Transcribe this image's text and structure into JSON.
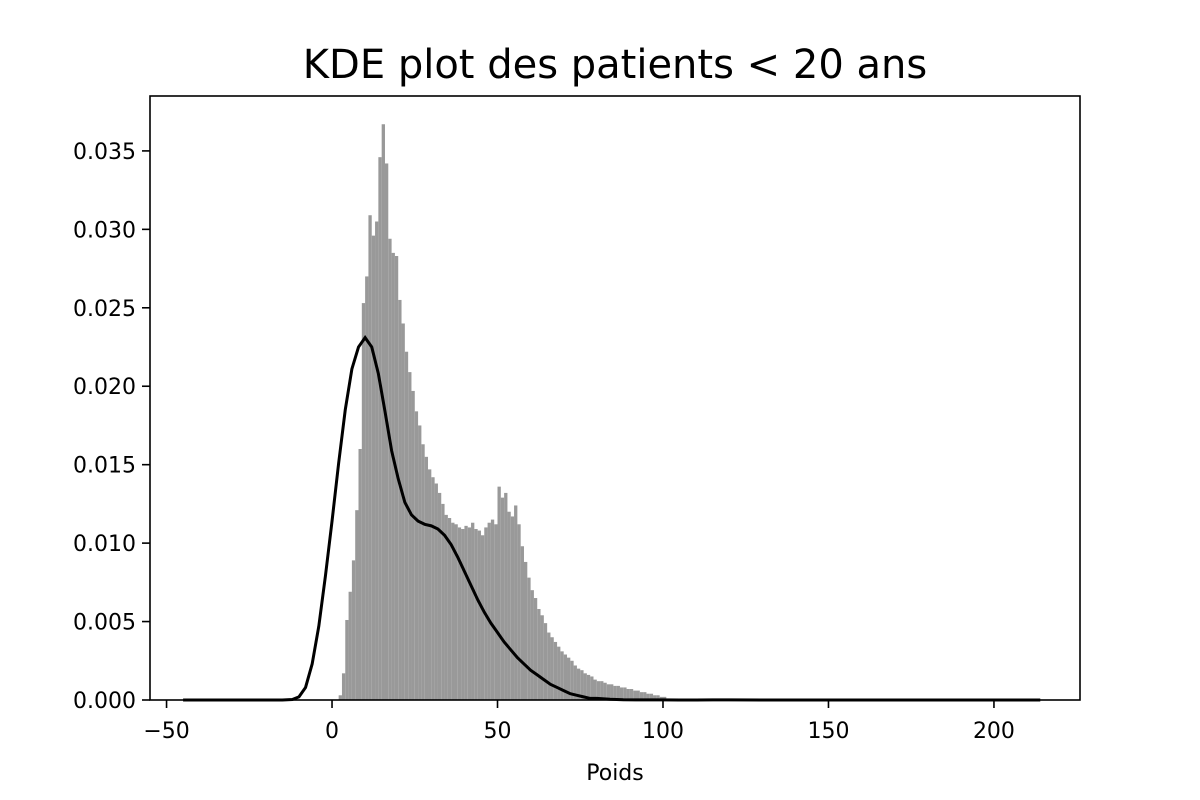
{
  "chart_data": {
    "type": "bar",
    "title": "KDE plot des patients < 20 ans",
    "xlabel": "Poids",
    "ylabel": "",
    "xlim": [
      -55,
      226
    ],
    "ylim": [
      0,
      0.0385
    ],
    "xticks": [
      {
        "value": -50,
        "label": "−50"
      },
      {
        "value": 0,
        "label": "0"
      },
      {
        "value": 50,
        "label": "50"
      },
      {
        "value": 100,
        "label": "100"
      },
      {
        "value": 150,
        "label": "150"
      },
      {
        "value": 200,
        "label": "200"
      }
    ],
    "yticks": [
      {
        "value": 0.0,
        "label": "0.000"
      },
      {
        "value": 0.005,
        "label": "0.005"
      },
      {
        "value": 0.01,
        "label": "0.010"
      },
      {
        "value": 0.015,
        "label": "0.015"
      },
      {
        "value": 0.02,
        "label": "0.020"
      },
      {
        "value": 0.025,
        "label": "0.025"
      },
      {
        "value": 0.03,
        "label": "0.030"
      },
      {
        "value": 0.035,
        "label": "0.035"
      }
    ],
    "grid": false,
    "colors": {
      "histogram": "#999999",
      "kde": "#000000"
    },
    "histogram": {
      "bin_width": 1,
      "bins": [
        [
          2,
          0.0003
        ],
        [
          3,
          0.0017
        ],
        [
          4,
          0.0051
        ],
        [
          5,
          0.0069
        ],
        [
          6,
          0.0089
        ],
        [
          7,
          0.0121
        ],
        [
          8,
          0.016
        ],
        [
          9,
          0.0253
        ],
        [
          10,
          0.027
        ],
        [
          11,
          0.0309
        ],
        [
          12,
          0.0296
        ],
        [
          13,
          0.0305
        ],
        [
          14,
          0.0346
        ],
        [
          15,
          0.0367
        ],
        [
          16,
          0.0342
        ],
        [
          17,
          0.0294
        ],
        [
          18,
          0.0285
        ],
        [
          19,
          0.0283
        ],
        [
          20,
          0.0255
        ],
        [
          21,
          0.024
        ],
        [
          22,
          0.0222
        ],
        [
          23,
          0.0209
        ],
        [
          24,
          0.0197
        ],
        [
          25,
          0.0184
        ],
        [
          26,
          0.0175
        ],
        [
          27,
          0.0163
        ],
        [
          28,
          0.0155
        ],
        [
          29,
          0.0147
        ],
        [
          30,
          0.0142
        ],
        [
          31,
          0.0138
        ],
        [
          32,
          0.0132
        ],
        [
          33,
          0.0125
        ],
        [
          34,
          0.0118
        ],
        [
          35,
          0.0116
        ],
        [
          36,
          0.0113
        ],
        [
          37,
          0.0112
        ],
        [
          38,
          0.011
        ],
        [
          39,
          0.0109
        ],
        [
          40,
          0.0111
        ],
        [
          41,
          0.011
        ],
        [
          42,
          0.0113
        ],
        [
          43,
          0.0109
        ],
        [
          44,
          0.0108
        ],
        [
          45,
          0.0105
        ],
        [
          46,
          0.011
        ],
        [
          47,
          0.0113
        ],
        [
          48,
          0.0115
        ],
        [
          49,
          0.0112
        ],
        [
          50,
          0.0136
        ],
        [
          51,
          0.0129
        ],
        [
          52,
          0.0132
        ],
        [
          53,
          0.012
        ],
        [
          54,
          0.0117
        ],
        [
          55,
          0.0124
        ],
        [
          56,
          0.0112
        ],
        [
          57,
          0.0098
        ],
        [
          58,
          0.0088
        ],
        [
          59,
          0.0078
        ],
        [
          60,
          0.007
        ],
        [
          61,
          0.0065
        ],
        [
          62,
          0.0058
        ],
        [
          63,
          0.0054
        ],
        [
          64,
          0.0049
        ],
        [
          65,
          0.0043
        ],
        [
          66,
          0.004
        ],
        [
          67,
          0.0037
        ],
        [
          68,
          0.0034
        ],
        [
          69,
          0.0031
        ],
        [
          70,
          0.0029
        ],
        [
          71,
          0.0027
        ],
        [
          72,
          0.0025
        ],
        [
          73,
          0.0022
        ],
        [
          74,
          0.002
        ],
        [
          75,
          0.0019
        ],
        [
          76,
          0.0017
        ],
        [
          77,
          0.0016
        ],
        [
          78,
          0.0015
        ],
        [
          79,
          0.0013
        ],
        [
          80,
          0.0012
        ],
        [
          81,
          0.0012
        ],
        [
          82,
          0.0011
        ],
        [
          83,
          0.001
        ],
        [
          84,
          0.001
        ],
        [
          85,
          0.0009
        ],
        [
          86,
          0.0009
        ],
        [
          87,
          0.0008
        ],
        [
          88,
          0.0008
        ],
        [
          89,
          0.0007
        ],
        [
          90,
          0.0007
        ],
        [
          91,
          0.0006
        ],
        [
          92,
          0.0006
        ],
        [
          93,
          0.0005
        ],
        [
          94,
          0.0005
        ],
        [
          95,
          0.0004
        ],
        [
          96,
          0.0004
        ],
        [
          97,
          0.0003
        ],
        [
          98,
          0.0003
        ],
        [
          99,
          0.0002
        ],
        [
          100,
          0.0002
        ]
      ]
    },
    "kde": {
      "x": [
        -45,
        -15,
        -12,
        -10,
        -8,
        -6,
        -4,
        -2,
        0,
        2,
        4,
        6,
        8,
        10,
        12,
        14,
        16,
        18,
        20,
        22,
        24,
        26,
        28,
        30,
        32,
        34,
        36,
        38,
        40,
        42,
        44,
        46,
        48,
        50,
        52,
        54,
        56,
        58,
        60,
        62,
        64,
        66,
        68,
        70,
        72,
        74,
        76,
        78,
        80,
        84,
        88,
        92,
        96,
        100,
        105,
        110,
        115,
        120,
        130,
        140,
        150,
        160,
        180,
        200,
        214
      ],
      "y": [
        0.0,
        0.0,
        3e-05,
        0.0002,
        0.0008,
        0.0023,
        0.0047,
        0.0079,
        0.0114,
        0.0151,
        0.0185,
        0.0211,
        0.0225,
        0.0231,
        0.0225,
        0.0208,
        0.0184,
        0.0159,
        0.0141,
        0.0126,
        0.0118,
        0.0114,
        0.0112,
        0.0111,
        0.0109,
        0.0105,
        0.0099,
        0.0091,
        0.0082,
        0.0073,
        0.0064,
        0.0056,
        0.0049,
        0.0043,
        0.0037,
        0.0032,
        0.0027,
        0.0023,
        0.0019,
        0.0016,
        0.0013,
        0.001,
        0.0008,
        0.0006,
        0.0004,
        0.0003,
        0.0002,
        0.0001,
        0.0001,
        5e-05,
        2e-05,
        1e-05,
        1e-05,
        1e-05,
        0.0,
        0.0,
        1e-05,
        1e-05,
        0.0,
        0.0,
        0.0,
        0.0,
        0.0,
        0.0,
        0.0
      ]
    }
  }
}
